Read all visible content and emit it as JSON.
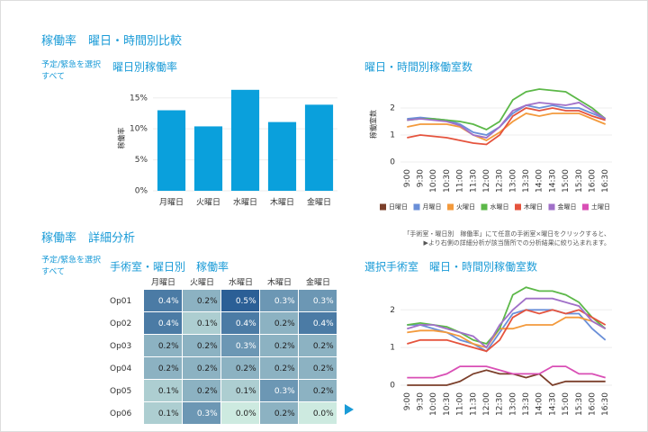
{
  "sections": [
    {
      "title": "稼働率　曜日・時間別比較",
      "filter_label": "予定/緊急を選択",
      "filter_value": "すべて"
    },
    {
      "title": "稼働率　詳細分析",
      "filter_label": "予定/緊急を選択",
      "filter_value": "すべて"
    }
  ],
  "note": [
    "「手術室・曜日別　稼働率」にて任意の手術室×曜日をクリックすると、",
    "▶より右側の詳細分析が該当箇所での分析結果に絞り込まれます。"
  ],
  "chart_data": [
    {
      "type": "bar",
      "title": "曜日別稼働率",
      "y_label": "稼働率",
      "color": "#0aa0dc",
      "grid": true,
      "categories": [
        "月曜日",
        "火曜日",
        "水曜日",
        "木曜日",
        "金曜日"
      ],
      "values": [
        13.0,
        10.4,
        16.3,
        11.1,
        13.9
      ],
      "ylim": [
        0,
        17
      ],
      "yticks": [
        {
          "value": 0,
          "label": "0%"
        },
        {
          "value": 5,
          "label": "5%"
        },
        {
          "value": 10,
          "label": "10%"
        },
        {
          "value": 15,
          "label": "15%"
        }
      ]
    },
    {
      "type": "line",
      "title": "曜日・時間別稼働室数",
      "y_label": "稼働室数",
      "grid": true,
      "legend": "bottom",
      "x": [
        "9:00",
        "9:30",
        "10:00",
        "10:30",
        "11:00",
        "11:30",
        "12:00",
        "12:30",
        "13:00",
        "13:30",
        "14:00",
        "14:30",
        "15:00",
        "15:30",
        "16:00",
        "16:30"
      ],
      "ylim": [
        0,
        2.8
      ],
      "yticks": [
        0,
        1,
        2
      ],
      "series": [
        {
          "name": "日曜日",
          "color": "#7b3f2a",
          "values": [
            null,
            null,
            null,
            null,
            null,
            null,
            null,
            null,
            null,
            null,
            null,
            null,
            null,
            null,
            null,
            null
          ]
        },
        {
          "name": "月曜日",
          "color": "#6a8fd8",
          "values": [
            1.6,
            1.65,
            1.6,
            1.55,
            1.4,
            1.1,
            1.0,
            1.3,
            1.8,
            2.1,
            2.0,
            2.1,
            2.0,
            2.0,
            1.8,
            1.6
          ]
        },
        {
          "name": "火曜日",
          "color": "#f39a3c",
          "values": [
            1.3,
            1.4,
            1.4,
            1.4,
            1.3,
            1.0,
            0.8,
            1.1,
            1.5,
            1.8,
            1.7,
            1.8,
            1.8,
            1.8,
            1.6,
            1.4
          ]
        },
        {
          "name": "水曜日",
          "color": "#5cb848",
          "values": [
            1.55,
            1.6,
            1.6,
            1.55,
            1.5,
            1.4,
            1.2,
            1.5,
            2.3,
            2.6,
            2.7,
            2.65,
            2.6,
            2.3,
            2.0,
            1.6
          ]
        },
        {
          "name": "木曜日",
          "color": "#e5533d",
          "values": [
            0.9,
            1.0,
            0.95,
            0.9,
            0.8,
            0.7,
            0.65,
            1.0,
            1.7,
            2.0,
            1.9,
            2.0,
            1.9,
            1.9,
            1.7,
            1.55
          ]
        },
        {
          "name": "金曜日",
          "color": "#a070c8",
          "values": [
            1.55,
            1.6,
            1.55,
            1.5,
            1.35,
            1.0,
            0.9,
            1.3,
            1.9,
            2.1,
            2.2,
            2.15,
            2.1,
            2.2,
            1.9,
            1.6
          ]
        },
        {
          "name": "土曜日",
          "color": "#d94fb5",
          "values": [
            null,
            null,
            null,
            null,
            null,
            null,
            null,
            null,
            null,
            null,
            null,
            null,
            null,
            null,
            null,
            null
          ]
        }
      ]
    },
    {
      "type": "heatmap",
      "title": "手術室・曜日別　稼働率",
      "vlim": [
        0,
        0.5
      ],
      "low_color": "#cdeae0",
      "high_color": "#2b5f96",
      "columns": [
        "月曜日",
        "火曜日",
        "水曜日",
        "木曜日",
        "金曜日"
      ],
      "rows": [
        "Op01",
        "Op02",
        "Op03",
        "Op04",
        "Op05",
        "Op06"
      ],
      "values": [
        [
          0.4,
          0.2,
          0.5,
          0.3,
          0.3
        ],
        [
          0.4,
          0.1,
          0.4,
          0.2,
          0.4
        ],
        [
          0.2,
          0.2,
          0.3,
          0.2,
          0.2
        ],
        [
          0.2,
          0.2,
          0.2,
          0.2,
          0.2
        ],
        [
          0.1,
          0.2,
          0.1,
          0.3,
          0.2
        ],
        [
          0.1,
          0.3,
          0.0,
          0.2,
          0.0
        ]
      ],
      "value_labels": [
        [
          "0.4%",
          "0.2%",
          "0.5%",
          "0.3%",
          "0.3%"
        ],
        [
          "0.4%",
          "0.1%",
          "0.4%",
          "0.2%",
          "0.4%"
        ],
        [
          "0.2%",
          "0.2%",
          "0.3%",
          "0.2%",
          "0.2%"
        ],
        [
          "0.2%",
          "0.2%",
          "0.2%",
          "0.2%",
          "0.2%"
        ],
        [
          "0.1%",
          "0.2%",
          "0.1%",
          "0.3%",
          "0.2%"
        ],
        [
          "0.1%",
          "0.3%",
          "0.0%",
          "0.2%",
          "0.0%"
        ]
      ]
    },
    {
      "type": "line",
      "title": "選択手術室　曜日・時間別稼働室数",
      "grid": true,
      "x": [
        "9:00",
        "9:30",
        "10:00",
        "10:30",
        "11:00",
        "11:30",
        "12:00",
        "12:30",
        "13:00",
        "13:30",
        "14:00",
        "14:30",
        "15:00",
        "15:30",
        "16:00",
        "16:30"
      ],
      "ylim": [
        0,
        2.7
      ],
      "yticks": [
        0,
        1,
        2
      ],
      "series": [
        {
          "name": "日曜日",
          "color": "#7b3f2a",
          "values": [
            0,
            0,
            0,
            0,
            0.1,
            0.3,
            0.4,
            0.3,
            0.3,
            0.2,
            0.3,
            0,
            0.1,
            0.1,
            0.1,
            0.1
          ]
        },
        {
          "name": "月曜日",
          "color": "#6a8fd8",
          "values": [
            1.6,
            1.6,
            1.5,
            1.4,
            1.2,
            1.1,
            0.9,
            1.4,
            1.9,
            2.0,
            2.0,
            2.0,
            1.9,
            1.9,
            1.5,
            1.2
          ]
        },
        {
          "name": "火曜日",
          "color": "#f39a3c",
          "values": [
            1.4,
            1.45,
            1.45,
            1.4,
            1.3,
            1.1,
            1.0,
            1.5,
            1.5,
            1.6,
            1.6,
            1.6,
            1.8,
            1.8,
            1.7,
            1.5
          ]
        },
        {
          "name": "水曜日",
          "color": "#5cb848",
          "values": [
            1.6,
            1.65,
            1.6,
            1.55,
            1.4,
            1.2,
            1.1,
            1.5,
            2.4,
            2.6,
            2.5,
            2.5,
            2.4,
            2.2,
            1.8,
            1.5
          ]
        },
        {
          "name": "木曜日",
          "color": "#e5533d",
          "values": [
            1.1,
            1.2,
            1.2,
            1.2,
            1.1,
            1.0,
            0.9,
            1.2,
            1.8,
            2.0,
            1.9,
            2.0,
            1.9,
            2.0,
            1.8,
            1.6
          ]
        },
        {
          "name": "金曜日",
          "color": "#a070c8",
          "values": [
            1.5,
            1.6,
            1.6,
            1.5,
            1.4,
            1.3,
            1.0,
            1.6,
            2.0,
            2.3,
            2.3,
            2.3,
            2.2,
            2.1,
            1.7,
            1.5
          ]
        },
        {
          "name": "土曜日",
          "color": "#d94fb5",
          "values": [
            0.2,
            0.2,
            0.2,
            0.3,
            0.5,
            0.5,
            0.5,
            0.4,
            0.3,
            0.3,
            0.3,
            0.5,
            0.5,
            0.3,
            0.3,
            0.2
          ]
        }
      ]
    }
  ]
}
